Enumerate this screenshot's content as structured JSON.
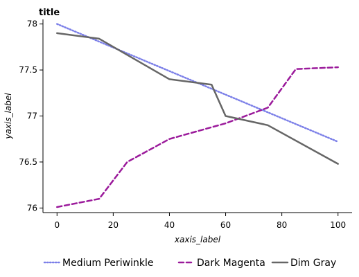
{
  "chart_data": {
    "type": "line",
    "title": "title",
    "xlabel": "xaxis_label",
    "ylabel": "yaxis_label",
    "xlim": [
      -5,
      105
    ],
    "ylim": [
      75.95,
      78.05
    ],
    "xticks": [
      0,
      20,
      40,
      60,
      80,
      100
    ],
    "yticks": [
      76,
      76.5,
      77,
      77.5,
      78
    ],
    "ytick_labels": [
      "76",
      "76.5",
      "77",
      "77.5",
      "78"
    ],
    "grid": false,
    "legend_position": "bottom",
    "series": [
      {
        "name": "Medium Periwinkle",
        "color": "#7b7fe8",
        "dash": "dotted",
        "x": [
          0,
          100
        ],
        "y": [
          78.0,
          76.72
        ]
      },
      {
        "name": "Dark Magenta",
        "color": "#9b1a9b",
        "dash": "dashed",
        "x": [
          0,
          15,
          25,
          40,
          60,
          75,
          85,
          100
        ],
        "y": [
          76.01,
          76.1,
          76.5,
          76.75,
          76.92,
          77.09,
          77.51,
          77.53
        ]
      },
      {
        "name": "Dim Gray",
        "color": "#666666",
        "dash": "solid",
        "x": [
          0,
          15,
          40,
          55,
          60,
          75,
          100
        ],
        "y": [
          77.9,
          77.84,
          77.4,
          77.34,
          77.0,
          76.9,
          76.48
        ]
      }
    ]
  }
}
